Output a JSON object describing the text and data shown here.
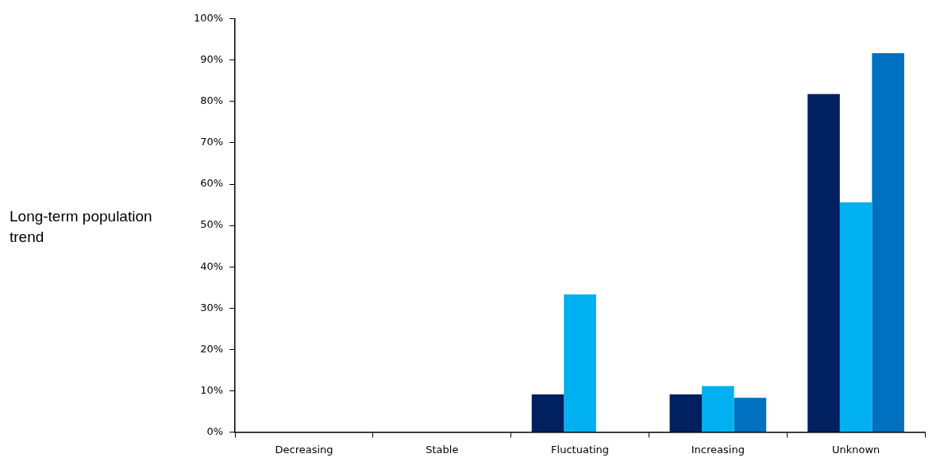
{
  "chart_data": {
    "type": "bar",
    "ylabel": "Long-term population trend",
    "categories": [
      "Decreasing",
      "Stable",
      "Fluctuating",
      "Increasing",
      "Unknown"
    ],
    "series": [
      {
        "color": "#002060",
        "values": [
          0,
          0,
          9.1,
          9.1,
          81.8
        ]
      },
      {
        "color": "#00b0f0",
        "values": [
          0,
          0,
          33.3,
          11.1,
          55.6
        ]
      },
      {
        "color": "#0070c0",
        "values": [
          0,
          0,
          0,
          8.3,
          91.7
        ]
      }
    ],
    "ylim": [
      0,
      100
    ],
    "yticks": [
      {
        "value": 0,
        "label": "0%"
      },
      {
        "value": 10,
        "label": "10%"
      },
      {
        "value": 20,
        "label": "20%"
      },
      {
        "value": 30,
        "label": "30%"
      },
      {
        "value": 40,
        "label": "40%"
      },
      {
        "value": 50,
        "label": "50%"
      },
      {
        "value": 60,
        "label": "60%"
      },
      {
        "value": 70,
        "label": "70%"
      },
      {
        "value": 80,
        "label": "80%"
      },
      {
        "value": 90,
        "label": "90%"
      },
      {
        "value": 100,
        "label": "100%"
      }
    ],
    "grid": false,
    "legend": false
  }
}
